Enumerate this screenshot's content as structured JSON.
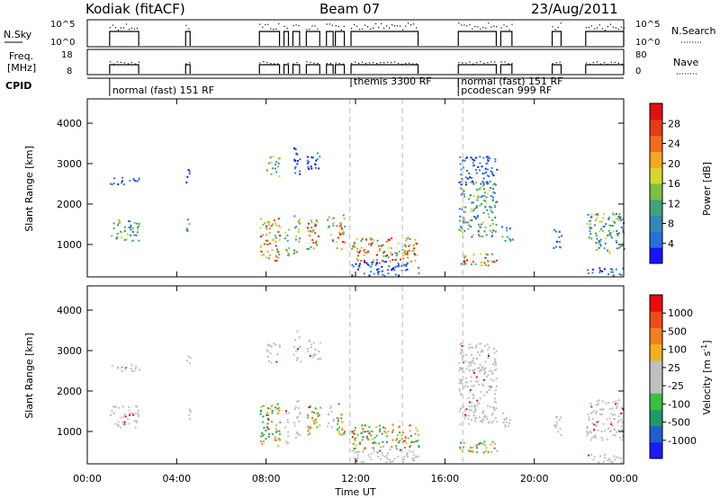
{
  "header": {
    "station": "Kodiak (fitACF)",
    "beam": "Beam 07",
    "date": "23/Aug/2011"
  },
  "colors": {
    "power_scale": [
      "#1414ff",
      "#2a6fd6",
      "#2e8bb8",
      "#3fa37a",
      "#7dbf3f",
      "#d7d72a",
      "#f5a623",
      "#f06a1d",
      "#e83a16",
      "#e01010"
    ],
    "velocity_scale": [
      "#1a1aff",
      "#1f5fd0",
      "#1d9a6a",
      "#3cbf3c",
      "#c0c0c0",
      "#c0c0c0",
      "#f0b020",
      "#f08020",
      "#f04a1a",
      "#e80c0c"
    ],
    "line": "#000000",
    "grid_dash": "#bbbbbb"
  },
  "chart_data": [
    {
      "type": "line",
      "panel": "noise-sky-search",
      "left_label": "N.Sky",
      "right_label": "N.Search",
      "left_ticks": [
        "10^5",
        "10^0"
      ],
      "right_ticks": [
        "10^5",
        "10^0"
      ]
    },
    {
      "type": "line",
      "panel": "freq-nave",
      "left_label": "Freq. [MHz]",
      "left_label_lines": [
        "Freq.",
        "[MHz]"
      ],
      "right_label": "Nave",
      "left_ticks": [
        "18",
        "8"
      ],
      "right_ticks": [
        "80",
        "0"
      ]
    },
    {
      "type": "table",
      "panel": "cpid",
      "label": "CPID",
      "segments": [
        {
          "text": "normal (fast) 151 RF",
          "start": 1.0
        },
        {
          "text": "themis 3300 RF",
          "start": 11.8
        },
        {
          "text": "normal (fast) 151 RF",
          "start": 16.6
        },
        {
          "text": "pcodescan 999 RF",
          "start": 16.6
        }
      ]
    },
    {
      "type": "heatmap",
      "panel": "power",
      "ylabel": "Slant Range [km]",
      "yticks": [
        1000,
        2000,
        3000,
        4000
      ],
      "ylim": [
        200,
        4600
      ],
      "xlim": [
        0,
        24
      ],
      "colorbar_label": "Power [dB]",
      "colorbar_ticks": [
        4,
        8,
        12,
        16,
        20,
        24,
        28
      ],
      "colorbar_range": [
        0,
        30
      ]
    },
    {
      "type": "heatmap",
      "panel": "velocity",
      "ylabel": "Slant Range [km]",
      "yticks": [
        1000,
        2000,
        3000,
        4000
      ],
      "ylim": [
        200,
        4600
      ],
      "xlim": [
        0,
        24
      ],
      "xlabel": "Time UT",
      "xticks": [
        "00:00",
        "04:00",
        "08:00",
        "12:00",
        "16:00",
        "20:00",
        "00:00"
      ],
      "colorbar_label": "Velocity [m s^-1]",
      "colorbar_title_parts": [
        "Velocity [m s",
        "-1",
        "]"
      ],
      "colorbar_ticks": [
        "1000",
        "500",
        "100",
        "25",
        "-25",
        "-100",
        "-500",
        "-1000"
      ]
    }
  ]
}
